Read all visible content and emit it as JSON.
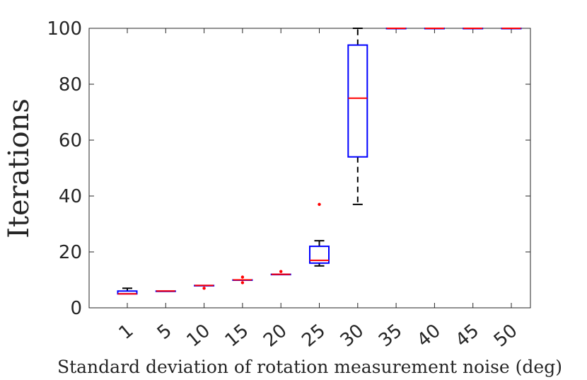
{
  "chart_data": {
    "type": "box",
    "title": "",
    "xlabel": "Standard deviation of rotation measurement noise (deg)",
    "ylabel": "Iterations",
    "ylim": [
      0,
      100
    ],
    "yticks": [
      0,
      20,
      40,
      60,
      80,
      100
    ],
    "categories": [
      "1",
      "5",
      "10",
      "15",
      "20",
      "25",
      "30",
      "35",
      "40",
      "45",
      "50"
    ],
    "boxes": [
      {
        "category": "1",
        "whisker_low": 5,
        "q1": 5,
        "median": 5,
        "q3": 6,
        "whisker_high": 7,
        "outliers": []
      },
      {
        "category": "5",
        "whisker_low": 6,
        "q1": 6,
        "median": 6,
        "q3": 6,
        "whisker_high": 6,
        "outliers": []
      },
      {
        "category": "10",
        "whisker_low": 8,
        "q1": 8,
        "median": 8,
        "q3": 8,
        "whisker_high": 8,
        "outliers": [
          7
        ]
      },
      {
        "category": "15",
        "whisker_low": 10,
        "q1": 10,
        "median": 10,
        "q3": 10,
        "whisker_high": 10,
        "outliers": [
          9,
          11
        ]
      },
      {
        "category": "20",
        "whisker_low": 12,
        "q1": 12,
        "median": 12,
        "q3": 12,
        "whisker_high": 12,
        "outliers": [
          13
        ]
      },
      {
        "category": "25",
        "whisker_low": 15,
        "q1": 16,
        "median": 17,
        "q3": 22,
        "whisker_high": 24,
        "outliers": [
          37
        ]
      },
      {
        "category": "30",
        "whisker_low": 37,
        "q1": 54,
        "median": 75,
        "q3": 94,
        "whisker_high": 100,
        "outliers": []
      },
      {
        "category": "35",
        "whisker_low": 100,
        "q1": 100,
        "median": 100,
        "q3": 100,
        "whisker_high": 100,
        "outliers": []
      },
      {
        "category": "40",
        "whisker_low": 100,
        "q1": 100,
        "median": 100,
        "q3": 100,
        "whisker_high": 100,
        "outliers": []
      },
      {
        "category": "45",
        "whisker_low": 100,
        "q1": 100,
        "median": 100,
        "q3": 100,
        "whisker_high": 100,
        "outliers": []
      },
      {
        "category": "50",
        "whisker_low": 100,
        "q1": 100,
        "median": 100,
        "q3": 100,
        "whisker_high": 100,
        "outliers": []
      }
    ],
    "grid": false,
    "colors": {
      "box": "#0000ff",
      "median": "#ff0000",
      "whisker": "#000000",
      "outlier": "#ff0000",
      "axis": "#262626"
    }
  }
}
